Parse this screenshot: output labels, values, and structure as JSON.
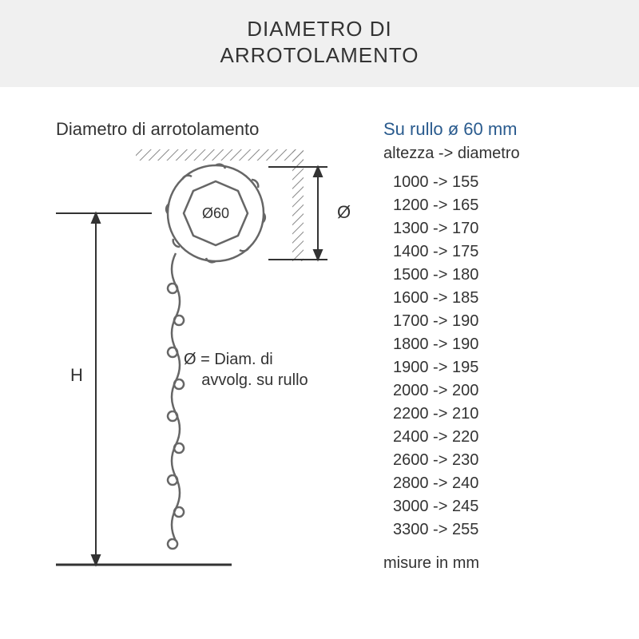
{
  "header": {
    "title_line1": "DIAMETRO DI",
    "title_line2": "ARROTOLAMENTO"
  },
  "diagram": {
    "left_title": "Diametro di arrotolamento",
    "h_label": "H",
    "center_label": "Ø60",
    "diameter_symbol": "Ø",
    "legend_line1": "Ø  = Diam. di",
    "legend_line2": "avvolg. su rullo",
    "colors": {
      "stroke": "#666666",
      "hatch": "#888888",
      "bg": "#ffffff",
      "text": "#333333"
    }
  },
  "table": {
    "title": "Su rullo ø 60 mm",
    "subtitle": "altezza -> diametro",
    "title_color": "#2a5b8e",
    "rows": [
      {
        "h": "1000",
        "d": "155"
      },
      {
        "h": "1200",
        "d": "165"
      },
      {
        "h": "1300",
        "d": "170"
      },
      {
        "h": "1400",
        "d": "175"
      },
      {
        "h": "1500",
        "d": "180"
      },
      {
        "h": "1600",
        "d": "185"
      },
      {
        "h": "1700",
        "d": "190"
      },
      {
        "h": "1800",
        "d": "190"
      },
      {
        "h": "1900",
        "d": "195"
      },
      {
        "h": "2000",
        "d": "200"
      },
      {
        "h": "2200",
        "d": "210"
      },
      {
        "h": "2400",
        "d": "220"
      },
      {
        "h": "2600",
        "d": "230"
      },
      {
        "h": "2800",
        "d": "240"
      },
      {
        "h": "3000",
        "d": "245"
      },
      {
        "h": "3300",
        "d": "255"
      }
    ],
    "unit_note": "misure in mm"
  }
}
